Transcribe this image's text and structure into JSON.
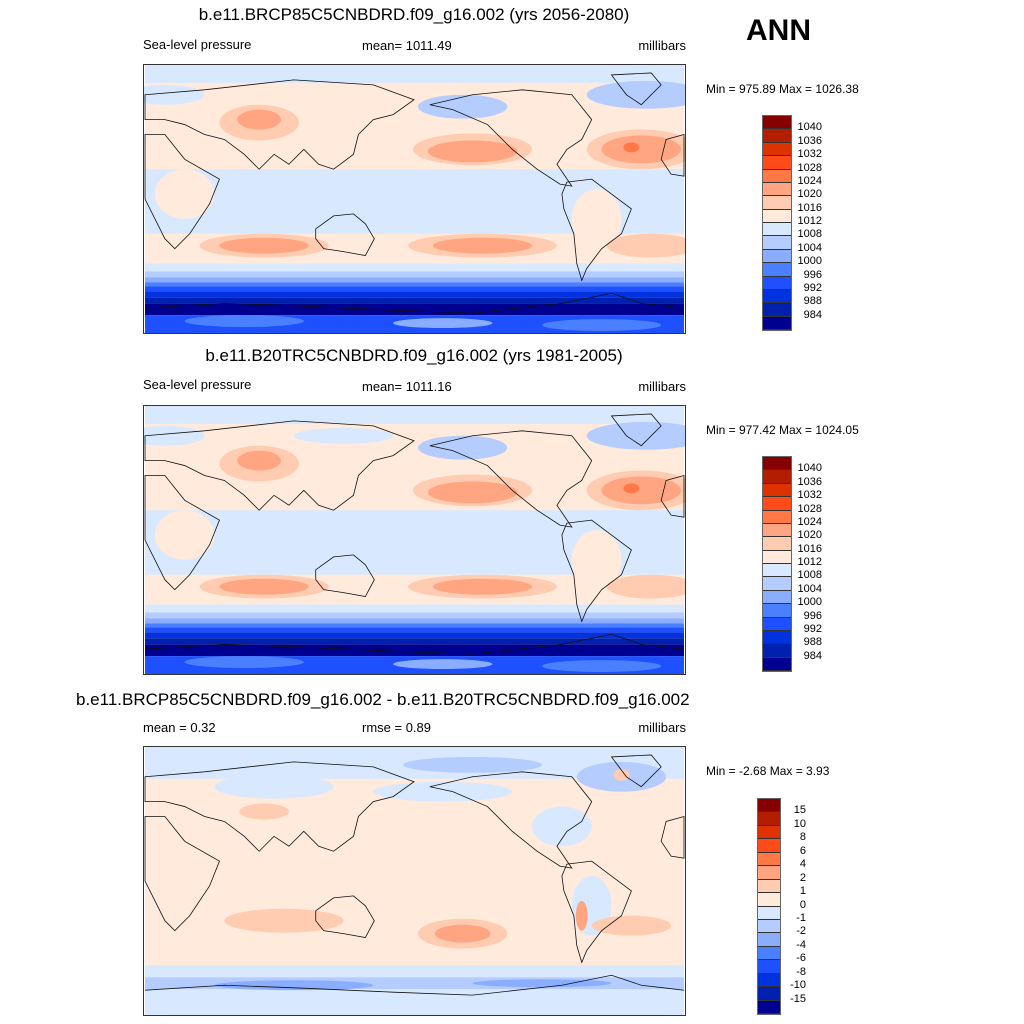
{
  "season": "ANN",
  "colors": {
    "pressure_scale": [
      "#870000",
      "#b31e00",
      "#de3300",
      "#ff4b1a",
      "#ff7845",
      "#ffa582",
      "#ffcbb1",
      "#ffeadb",
      "#d8e9ff",
      "#b5ccff",
      "#8badff",
      "#4a80ff",
      "#1e50ff",
      "#0032e0",
      "#0020b0",
      "#000090"
    ]
  },
  "panels": [
    {
      "title": "b.e11.BRCP85C5CNBDRD.f09_g16.002 (yrs 2056-2080)",
      "left": "Sea-level pressure",
      "center": "mean= 1011.49",
      "right": "millibars",
      "minmax": "Min = 975.89 Max = 1026.38",
      "levels": [
        "1040",
        "1036",
        "1032",
        "1028",
        "1024",
        "1020",
        "1016",
        "1012",
        "1008",
        "1004",
        "1000",
        "996",
        "992",
        "988",
        "984"
      ]
    },
    {
      "title": "b.e11.B20TRC5CNBDRD.f09_g16.002 (yrs 1981-2005)",
      "left": "Sea-level pressure",
      "center": "mean= 1011.16",
      "right": "millibars",
      "minmax": "Min = 977.42 Max = 1024.05",
      "levels": [
        "1040",
        "1036",
        "1032",
        "1028",
        "1024",
        "1020",
        "1016",
        "1012",
        "1008",
        "1004",
        "1000",
        "996",
        "992",
        "988",
        "984"
      ]
    },
    {
      "title": "b.e11.BRCP85C5CNBDRD.f09_g16.002 - b.e11.B20TRC5CNBDRD.f09_g16.002",
      "left": "mean =   0.32",
      "center": "rmse =   0.89",
      "right": "millibars",
      "minmax": "Min =  -2.68 Max =   3.93",
      "levels": [
        "15",
        "10",
        "8",
        "6",
        "4",
        "2",
        "1",
        "0",
        "-1",
        "-2",
        "-4",
        "-6",
        "-8",
        "-10",
        "-15"
      ]
    }
  ]
}
